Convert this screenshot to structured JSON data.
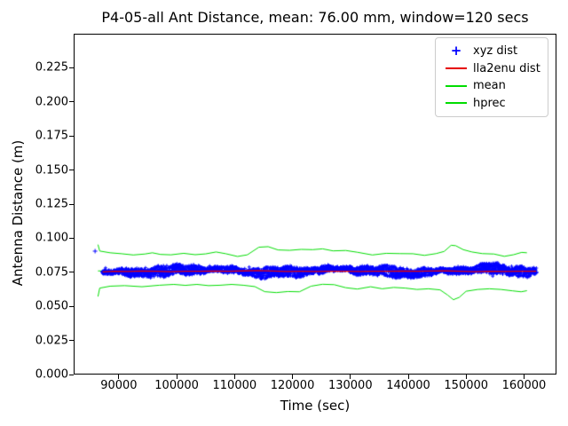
{
  "figure": {
    "title": "P4-05-all Ant Distance, mean: 76.00 mm, window=120 secs",
    "xlabel": "Time (sec)",
    "ylabel": "Antenna Distance (m)",
    "background_color": "#ffffff",
    "spine_color": "#000000"
  },
  "chart_data": {
    "type": "scatter",
    "title": "P4-05-all Ant Distance, mean: 76.00 mm, window=120 secs",
    "xlabel": "Time (sec)",
    "ylabel": "Antenna Distance (m)",
    "xlim": [
      82200,
      165600
    ],
    "ylim": [
      0,
      0.25
    ],
    "grid": false,
    "x_ticks": [
      90000,
      100000,
      110000,
      120000,
      130000,
      140000,
      150000,
      160000
    ],
    "x_tick_labels": [
      "90000",
      "100000",
      "110000",
      "120000",
      "130000",
      "140000",
      "150000",
      "160000"
    ],
    "y_ticks": [
      0.0,
      0.025,
      0.05,
      0.075,
      0.1,
      0.125,
      0.15,
      0.175,
      0.2,
      0.225
    ],
    "y_tick_labels": [
      "0.000",
      "0.025",
      "0.050",
      "0.075",
      "0.100",
      "0.125",
      "0.150",
      "0.175",
      "0.200",
      "0.225"
    ],
    "mean_mm": "76.00",
    "window_secs": 120,
    "legend": {
      "position": "upper right",
      "entries": [
        {
          "label": "xyz dist",
          "marker": "plus",
          "marker_glyph": "+",
          "color": "#0000ff"
        },
        {
          "label": "lla2enu dist",
          "marker": "line",
          "color": "#e60000"
        },
        {
          "label": "mean",
          "marker": "line",
          "color": "#00dd00"
        },
        {
          "label": "hprec",
          "marker": "line",
          "color": "#00dd00"
        }
      ]
    },
    "series": [
      {
        "name": "xyz dist",
        "type": "scatter",
        "marker": "+",
        "color": "#0000ff",
        "x_range": [
          87200,
          162100
        ],
        "center_mean": 0.076,
        "noise_halfwidth": 0.003,
        "outliers": [
          [
            85900,
            0.0905
          ]
        ]
      },
      {
        "name": "lla2enu dist",
        "type": "line",
        "color": "#e60000",
        "points": [
          [
            87200,
            0.0753
          ],
          [
            89000,
            0.0757
          ],
          [
            91500,
            0.0756
          ],
          [
            94000,
            0.0759
          ],
          [
            96500,
            0.0757
          ],
          [
            99000,
            0.0755
          ],
          [
            101500,
            0.0758
          ],
          [
            104000,
            0.0757
          ],
          [
            106500,
            0.0759
          ],
          [
            109000,
            0.0757
          ],
          [
            111500,
            0.076
          ],
          [
            114000,
            0.0762
          ],
          [
            116500,
            0.0759
          ],
          [
            119000,
            0.0756
          ],
          [
            121500,
            0.0757
          ],
          [
            124000,
            0.0756
          ],
          [
            126500,
            0.0758
          ],
          [
            129000,
            0.0757
          ],
          [
            131500,
            0.0756
          ],
          [
            134000,
            0.0758
          ],
          [
            136500,
            0.0757
          ],
          [
            139000,
            0.0759
          ],
          [
            141500,
            0.0758
          ],
          [
            144000,
            0.0759
          ],
          [
            146500,
            0.076
          ],
          [
            149000,
            0.0757
          ],
          [
            151500,
            0.0755
          ],
          [
            154000,
            0.0757
          ],
          [
            156500,
            0.0756
          ],
          [
            159000,
            0.0757
          ],
          [
            162100,
            0.0758
          ]
        ]
      },
      {
        "name": "mean",
        "type": "line",
        "color": "#00dd00",
        "points": [
          [
            86400,
            0.076
          ],
          [
            160500,
            0.076
          ]
        ]
      },
      {
        "name": "hprec",
        "type": "line",
        "color": "#00dd00",
        "upper": [
          [
            86400,
            0.0953
          ],
          [
            86700,
            0.0906
          ],
          [
            88500,
            0.0893
          ],
          [
            90500,
            0.0886
          ],
          [
            92500,
            0.0877
          ],
          [
            94500,
            0.0884
          ],
          [
            95800,
            0.0893
          ],
          [
            97200,
            0.0881
          ],
          [
            99000,
            0.0878
          ],
          [
            101200,
            0.0889
          ],
          [
            103200,
            0.0879
          ],
          [
            105000,
            0.0885
          ],
          [
            106800,
            0.0899
          ],
          [
            108500,
            0.0886
          ],
          [
            110500,
            0.0866
          ],
          [
            112200,
            0.0878
          ],
          [
            114200,
            0.0934
          ],
          [
            115800,
            0.0938
          ],
          [
            117500,
            0.0914
          ],
          [
            119500,
            0.0911
          ],
          [
            121500,
            0.0918
          ],
          [
            123500,
            0.0916
          ],
          [
            125200,
            0.0922
          ],
          [
            127000,
            0.0907
          ],
          [
            129200,
            0.091
          ],
          [
            131200,
            0.0897
          ],
          [
            133800,
            0.0877
          ],
          [
            136200,
            0.0889
          ],
          [
            138500,
            0.0887
          ],
          [
            140800,
            0.0886
          ],
          [
            142800,
            0.0874
          ],
          [
            144800,
            0.0887
          ],
          [
            146200,
            0.0903
          ],
          [
            147400,
            0.0948
          ],
          [
            148200,
            0.0945
          ],
          [
            149500,
            0.0916
          ],
          [
            151000,
            0.0899
          ],
          [
            152800,
            0.0887
          ],
          [
            154800,
            0.0884
          ],
          [
            156600,
            0.0867
          ],
          [
            158200,
            0.0879
          ],
          [
            159600,
            0.0896
          ],
          [
            160500,
            0.0893
          ]
        ],
        "lower": [
          [
            86400,
            0.0572
          ],
          [
            86700,
            0.0634
          ],
          [
            88500,
            0.0648
          ],
          [
            91000,
            0.0652
          ],
          [
            94000,
            0.0644
          ],
          [
            97000,
            0.0655
          ],
          [
            99500,
            0.0661
          ],
          [
            101500,
            0.0654
          ],
          [
            103500,
            0.0661
          ],
          [
            105500,
            0.0652
          ],
          [
            107500,
            0.0655
          ],
          [
            109500,
            0.0661
          ],
          [
            111500,
            0.0655
          ],
          [
            113500,
            0.0645
          ],
          [
            115200,
            0.0608
          ],
          [
            117200,
            0.0601
          ],
          [
            119200,
            0.0609
          ],
          [
            121200,
            0.0607
          ],
          [
            123200,
            0.0648
          ],
          [
            125200,
            0.0662
          ],
          [
            127200,
            0.0659
          ],
          [
            129200,
            0.0637
          ],
          [
            131200,
            0.0627
          ],
          [
            133500,
            0.0644
          ],
          [
            135500,
            0.0629
          ],
          [
            137500,
            0.0639
          ],
          [
            139500,
            0.0634
          ],
          [
            141500,
            0.0624
          ],
          [
            143500,
            0.0629
          ],
          [
            145500,
            0.0621
          ],
          [
            146800,
            0.0583
          ],
          [
            147800,
            0.0549
          ],
          [
            148800,
            0.0566
          ],
          [
            150000,
            0.0611
          ],
          [
            152000,
            0.0624
          ],
          [
            154000,
            0.0629
          ],
          [
            156000,
            0.0624
          ],
          [
            158000,
            0.0614
          ],
          [
            159500,
            0.0607
          ],
          [
            160500,
            0.0615
          ]
        ]
      }
    ]
  }
}
